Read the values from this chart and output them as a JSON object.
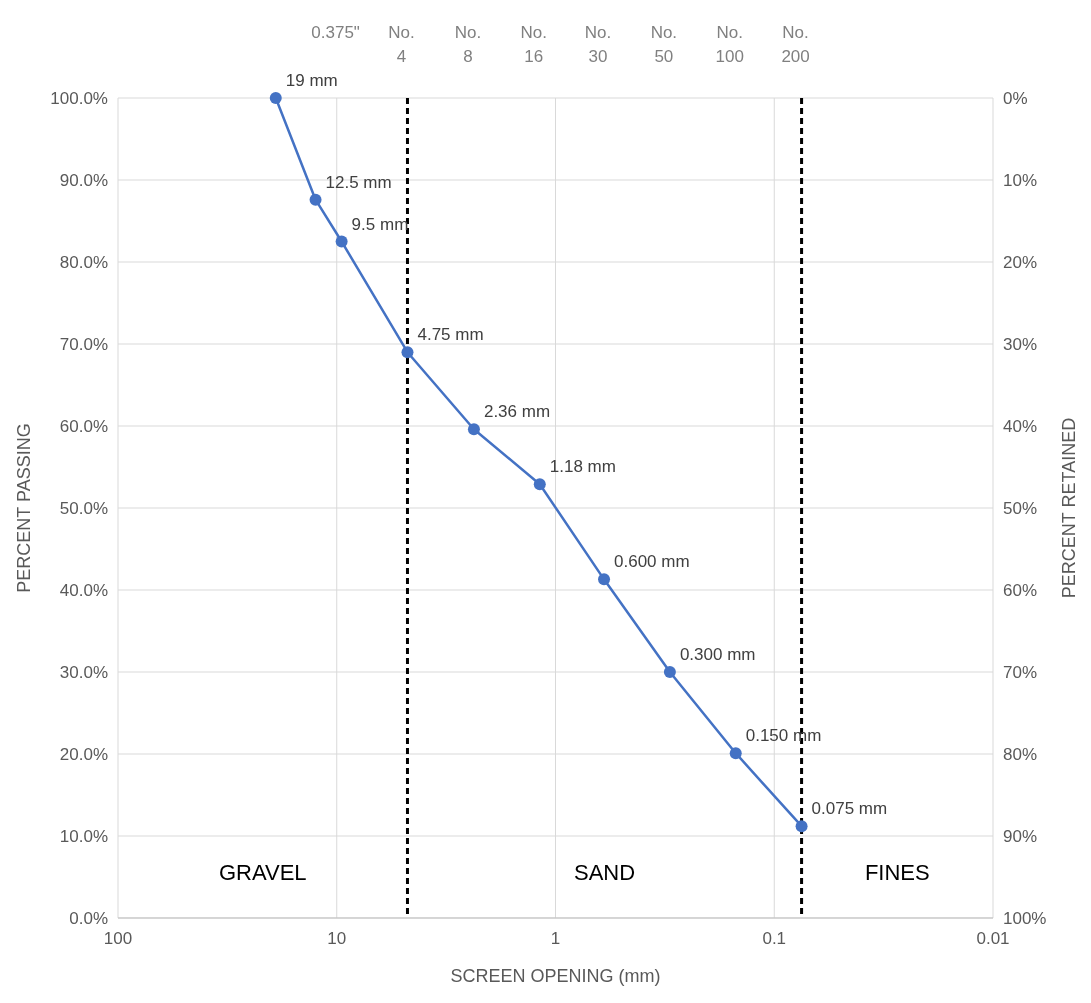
{
  "chart_data": {
    "type": "line",
    "xlabel": "SCREEN OPENING (mm)",
    "ylabel": "PERCENT PASSING",
    "y2label": "PERCENT RETAINED",
    "log": "x",
    "grid": true,
    "marker": "circle",
    "line_style": "solid",
    "x": [
      19,
      12.5,
      9.5,
      4.75,
      2.36,
      1.18,
      0.6,
      0.3,
      0.15,
      0.075
    ],
    "series": [
      {
        "color": "#4472c4",
        "values": [
          100,
          87.6,
          82.5,
          69,
          59.6,
          52.9,
          41.3,
          30,
          20.1,
          11.2
        ]
      }
    ],
    "xlim": [
      100,
      0.01
    ],
    "xticks": [
      100,
      10,
      1,
      0.1,
      0.01
    ],
    "ylim": [
      0,
      100
    ],
    "yticks": [
      {
        "value": 0,
        "label": "0.0%"
      },
      {
        "value": 10,
        "label": "10.0%"
      },
      {
        "value": 20,
        "label": "20.0%"
      },
      {
        "value": 30,
        "label": "30.0%"
      },
      {
        "value": 40,
        "label": "40.0%"
      },
      {
        "value": 50,
        "label": "50.0%"
      },
      {
        "value": 60,
        "label": "60.0%"
      },
      {
        "value": 70,
        "label": "70.0%"
      },
      {
        "value": 80,
        "label": "80.0%"
      },
      {
        "value": 90,
        "label": "90.0%"
      },
      {
        "value": 100,
        "label": "100.0%"
      }
    ],
    "y2lim": [
      100,
      0
    ],
    "y2ticks": [
      {
        "value": 0,
        "label": "0%"
      },
      {
        "value": 10,
        "label": "10%"
      },
      {
        "value": 20,
        "label": "20%"
      },
      {
        "value": 30,
        "label": "30%"
      },
      {
        "value": 40,
        "label": "40%"
      },
      {
        "value": 50,
        "label": "50%"
      },
      {
        "value": 60,
        "label": "60%"
      },
      {
        "value": 70,
        "label": "70%"
      },
      {
        "value": 80,
        "label": "80%"
      },
      {
        "value": 90,
        "label": "90%"
      },
      {
        "value": 100,
        "label": "100%"
      }
    ],
    "ref_lines": [
      {
        "axis": "x",
        "value": 4.75,
        "color": "#000000",
        "line_style": "dashed"
      },
      {
        "axis": "x",
        "value": 0.075,
        "color": "#000000",
        "line_style": "dashed"
      }
    ],
    "annotations": [
      "GRAVEL",
      "SAND",
      "FINES",
      "0.375\"",
      "No. 4",
      "No. 8",
      "No. 16",
      "No. 30",
      "No. 50",
      "No. 100",
      "No. 200",
      {
        "text": "19 mm",
        "x": 19,
        "y": 100
      },
      {
        "text": "12.5 mm",
        "x": 12.5,
        "y": 87.6
      },
      {
        "text": "9.5 mm",
        "x": 9.5,
        "y": 82.5
      },
      {
        "text": "4.75 mm",
        "x": 4.75,
        "y": 69
      },
      {
        "text": "2.36 mm",
        "x": 2.36,
        "y": 59.6
      },
      {
        "text": "1.18 mm",
        "x": 1.18,
        "y": 52.9
      },
      {
        "text": "0.600 mm",
        "x": 0.6,
        "y": 41.3
      },
      {
        "text": "0.300 mm",
        "x": 0.3,
        "y": 30
      },
      {
        "text": "0.150 mm",
        "x": 0.15,
        "y": 20.1
      },
      {
        "text": "0.075 mm",
        "x": 0.075,
        "y": 11.2
      }
    ]
  }
}
